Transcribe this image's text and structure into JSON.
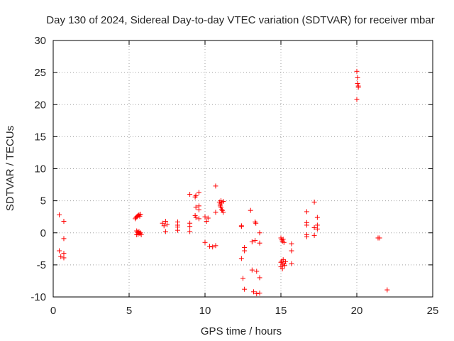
{
  "chart_data": {
    "type": "scatter",
    "title": "Day 130 of 2024, Sidereal Day-to-day VTEC variation (SDTVAR) for receiver mbar",
    "xlabel": "GPS time / hours",
    "ylabel": "SDTVAR / TECUs",
    "xlim": [
      0,
      25
    ],
    "ylim": [
      -10,
      30
    ],
    "x_ticks": [
      0,
      5,
      10,
      15,
      20,
      25
    ],
    "y_ticks": [
      -10,
      -5,
      0,
      5,
      10,
      15,
      20,
      25,
      30
    ],
    "grid": true,
    "marker": "+",
    "marker_color": "#ff0000",
    "series": [
      {
        "name": "SDTVAR",
        "points": [
          [
            0.4,
            2.8
          ],
          [
            0.4,
            -2.8
          ],
          [
            0.5,
            -3.7
          ],
          [
            0.7,
            1.8
          ],
          [
            0.7,
            -0.9
          ],
          [
            0.7,
            -3.2
          ],
          [
            0.7,
            -3.9
          ],
          [
            5.4,
            2.2
          ],
          [
            5.45,
            2.4
          ],
          [
            5.5,
            2.5
          ],
          [
            5.55,
            2.6
          ],
          [
            5.6,
            2.7
          ],
          [
            5.65,
            2.8
          ],
          [
            5.7,
            2.6
          ],
          [
            5.75,
            2.9
          ],
          [
            5.5,
            0.3
          ],
          [
            5.5,
            -0.3
          ],
          [
            5.55,
            0.1
          ],
          [
            5.6,
            0.0
          ],
          [
            5.6,
            -0.2
          ],
          [
            5.65,
            0.2
          ],
          [
            5.7,
            -0.1
          ],
          [
            5.75,
            0.0
          ],
          [
            5.8,
            -0.3
          ],
          [
            7.2,
            1.5
          ],
          [
            7.3,
            1.1
          ],
          [
            7.4,
            1.8
          ],
          [
            7.5,
            1.3
          ],
          [
            7.4,
            0.2
          ],
          [
            8.2,
            1.7
          ],
          [
            8.2,
            1.2
          ],
          [
            8.2,
            0.9
          ],
          [
            8.2,
            0.4
          ],
          [
            9.0,
            6.0
          ],
          [
            9.0,
            1.5
          ],
          [
            9.0,
            1.0
          ],
          [
            9.0,
            0.2
          ],
          [
            9.35,
            5.6
          ],
          [
            9.4,
            5.8
          ],
          [
            9.4,
            4.0
          ],
          [
            9.35,
            2.7
          ],
          [
            9.4,
            2.4
          ],
          [
            9.6,
            6.3
          ],
          [
            9.6,
            4.2
          ],
          [
            9.6,
            3.6
          ],
          [
            9.6,
            2.2
          ],
          [
            10.0,
            2.5
          ],
          [
            10.1,
            1.8
          ],
          [
            10.2,
            2.3
          ],
          [
            10.0,
            -1.5
          ],
          [
            10.3,
            -2.1
          ],
          [
            10.5,
            -2.2
          ],
          [
            10.7,
            -2.0
          ],
          [
            10.7,
            7.3
          ],
          [
            10.7,
            3.2
          ],
          [
            10.95,
            4.8
          ],
          [
            11.0,
            4.5
          ],
          [
            11.0,
            4.2
          ],
          [
            11.05,
            5.0
          ],
          [
            11.05,
            4.0
          ],
          [
            11.1,
            3.6
          ],
          [
            11.1,
            4.7
          ],
          [
            11.15,
            3.5
          ],
          [
            11.2,
            4.9
          ],
          [
            11.2,
            3.2
          ],
          [
            12.4,
            1.1
          ],
          [
            12.4,
            1.0
          ],
          [
            12.4,
            -4.0
          ],
          [
            12.5,
            -7.1
          ],
          [
            12.6,
            -2.3
          ],
          [
            12.6,
            -2.8
          ],
          [
            12.6,
            -8.8
          ],
          [
            13.0,
            3.5
          ],
          [
            13.1,
            -1.4
          ],
          [
            13.1,
            -5.8
          ],
          [
            13.2,
            -9.2
          ],
          [
            13.3,
            1.7
          ],
          [
            13.35,
            1.5
          ],
          [
            13.3,
            -1.2
          ],
          [
            13.4,
            -6.0
          ],
          [
            13.4,
            -9.5
          ],
          [
            13.6,
            0.0
          ],
          [
            13.6,
            -1.6
          ],
          [
            13.6,
            -7.0
          ],
          [
            13.6,
            -9.4
          ],
          [
            15.0,
            -0.8
          ],
          [
            15.05,
            -1.1
          ],
          [
            15.1,
            -1.3
          ],
          [
            15.15,
            -1.0
          ],
          [
            15.2,
            -1.5
          ],
          [
            15.0,
            -4.6
          ],
          [
            15.0,
            -5.3
          ],
          [
            15.05,
            -4.4
          ],
          [
            15.1,
            -5.0
          ],
          [
            15.1,
            -5.6
          ],
          [
            15.15,
            -4.2
          ],
          [
            15.2,
            -4.8
          ],
          [
            15.25,
            -5.1
          ],
          [
            15.3,
            -4.5
          ],
          [
            15.7,
            -1.7
          ],
          [
            15.7,
            -2.8
          ],
          [
            15.7,
            -4.8
          ],
          [
            16.7,
            3.3
          ],
          [
            16.7,
            1.6
          ],
          [
            16.7,
            1.2
          ],
          [
            16.7,
            -0.3
          ],
          [
            16.7,
            -0.6
          ],
          [
            17.2,
            4.8
          ],
          [
            17.2,
            0.8
          ],
          [
            17.2,
            -0.4
          ],
          [
            17.4,
            2.4
          ],
          [
            17.4,
            1.2
          ],
          [
            17.4,
            0.6
          ],
          [
            20.0,
            25.2
          ],
          [
            20.0,
            20.8
          ],
          [
            20.05,
            24.2
          ],
          [
            20.05,
            23.3
          ],
          [
            20.1,
            22.9
          ],
          [
            20.1,
            22.7
          ],
          [
            21.4,
            -0.8
          ],
          [
            21.5,
            -0.8
          ],
          [
            22.0,
            -8.9
          ]
        ]
      }
    ]
  }
}
